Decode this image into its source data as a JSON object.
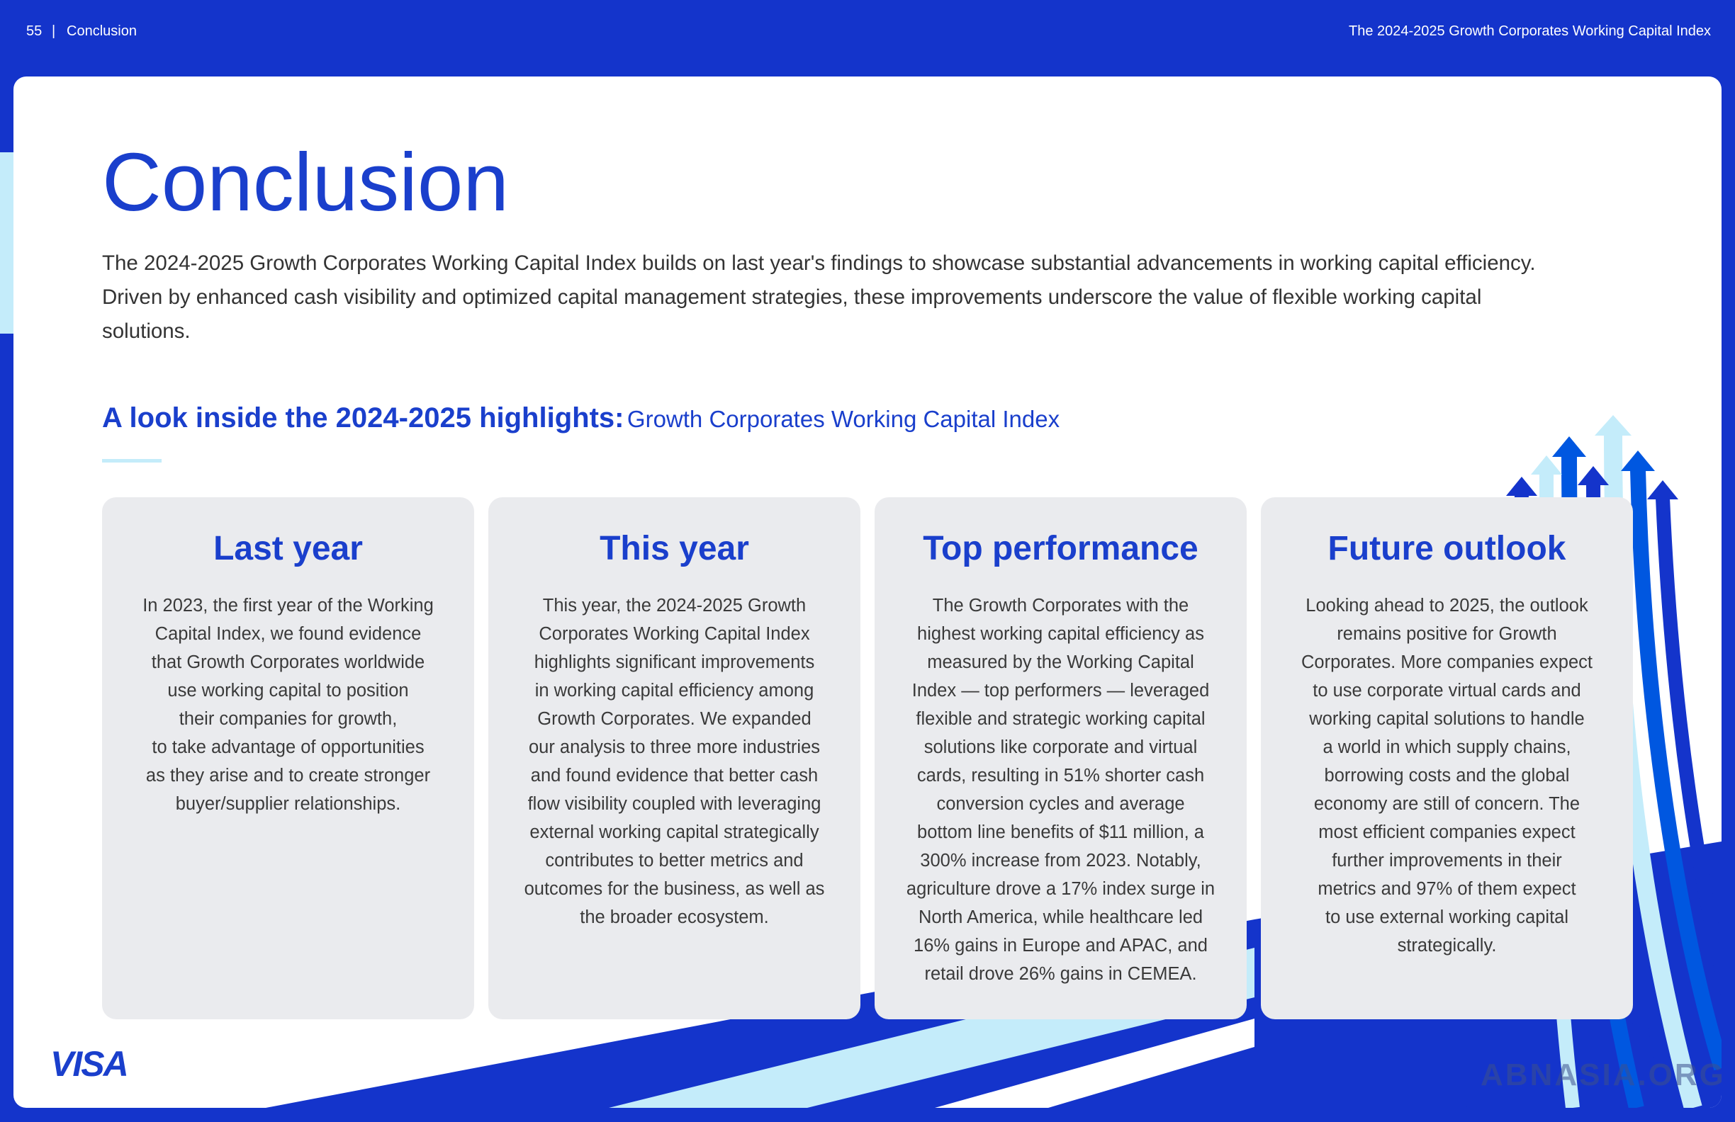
{
  "header": {
    "page_number": "55",
    "separator": "|",
    "section": "Conclusion",
    "report_title": "The 2024-2025 Growth Corporates Working Capital Index"
  },
  "title": "Conclusion",
  "intro": [
    "The 2024-2025 Growth Corporates Working Capital Index builds on last year's findings to showcase substantial advancements in working capital efficiency.",
    "Driven by enhanced cash visibility and optimized capital management strategies, these improvements underscore the value of flexible working capital",
    "solutions."
  ],
  "highlights": {
    "heading": "A look inside the 2024-2025 highlights:",
    "subheading": "Growth Corporates Working Capital Index"
  },
  "cards": [
    {
      "title": "Last year",
      "lines": [
        "In 2023, the first year of the Working",
        "Capital Index, we found evidence",
        "that Growth Corporates worldwide",
        "use working capital to position",
        "their companies for growth,",
        "to take advantage of opportunities",
        "as they arise and to create stronger",
        "buyer/supplier relationships."
      ]
    },
    {
      "title": "This year",
      "lines": [
        "This year, the 2024-2025 Growth",
        "Corporates Working Capital Index",
        "highlights significant improvements",
        "in working capital efficiency among",
        "Growth Corporates. We expanded",
        "our analysis to three more industries",
        "and found evidence that better cash",
        "flow visibility coupled with leveraging",
        "external working capital strategically",
        "contributes to better metrics and",
        "outcomes for the business, as well as",
        "the broader ecosystem."
      ]
    },
    {
      "title": "Top performance",
      "lines": [
        "The Growth Corporates with the",
        "highest working capital efficiency as",
        "measured by the Working Capital",
        "Index — top performers — leveraged",
        "flexible and strategic working capital",
        "solutions like corporate and virtual",
        "cards, resulting in 51% shorter cash",
        "conversion cycles and average",
        "bottom line benefits of $11 million, a",
        "300% increase from 2023. Notably,",
        "agriculture drove a 17% index surge in",
        "North America, while healthcare led",
        "16% gains in Europe and APAC, and",
        "retail drove 26% gains in CEMEA."
      ]
    },
    {
      "title": "Future outlook",
      "lines": [
        "Looking ahead to 2025, the outlook",
        "remains positive for Growth",
        "Corporates. More companies expect",
        "to use corporate virtual cards and",
        "working capital solutions to handle",
        "a world in which supply chains,",
        "borrowing costs and the global",
        "economy are still of concern. The",
        "most efficient companies expect",
        "further improvements in their",
        "metrics and 97% of them expect",
        "to use external working capital",
        "strategically."
      ]
    }
  ],
  "footer": {
    "logo": "VISA",
    "watermark": "ABNASIA.ORG"
  }
}
